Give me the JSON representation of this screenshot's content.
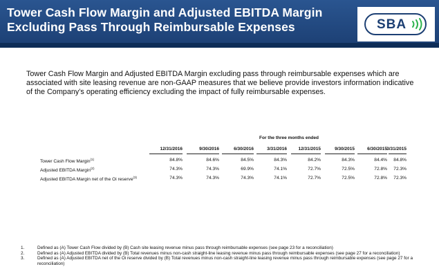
{
  "header": {
    "title_line1": "Tower Cash Flow Margin and Adjusted EBITDA Margin",
    "title_line2": "Excluding Pass Through Reimbursable Expenses",
    "logo_text": "SBA",
    "logo_icon": "signal-waves-icon",
    "colors": {
      "header_bg": "#1c3f73",
      "logo_green": "#2bb24c"
    }
  },
  "intro": "Tower Cash Flow Margin and Adjusted EBITDA Margin excluding pass through reimbursable expenses which are associated with site leasing revenue are non-GAAP measures that we believe provide investors information indicative of the Company’s operating efficiency excluding the impact of fully reimbursable expenses.",
  "table": {
    "caption": "For the three months ended",
    "columns": [
      "12/31/2016",
      "9/30/2016",
      "6/30/2016",
      "3/31/2016",
      "12/31/2015",
      "9/30/2015",
      "6/30/2015",
      "3/31/2015"
    ],
    "rows": [
      {
        "label": "Tower Cash Flow Margin",
        "footnote": "(1)",
        "values": [
          "84.8%",
          "84.6%",
          "84.5%",
          "84.3%",
          "84.2%",
          "84.3%",
          "84.4%",
          "84.8%"
        ]
      },
      {
        "label": "Adjusted EBITDA Margin",
        "footnote": "(2)",
        "values": [
          "74.3%",
          "74.3%",
          "69.9%",
          "74.1%",
          "72.7%",
          "72.5%",
          "72.8%",
          "72.3%"
        ]
      },
      {
        "label": "Adjusted EBITDA Margin net of the Oi reserve",
        "footnote": "(3)",
        "values": [
          "74.3%",
          "74.3%",
          "74.3%",
          "74.1%",
          "72.7%",
          "72.5%",
          "72.8%",
          "72.3%"
        ]
      }
    ]
  },
  "footnotes": [
    {
      "num": "1.",
      "text": "Defined as (A) Tower Cash Flow divided by (B) Cash site leasing revenue minus pass through reimbursable expenses (see page 23 for a reconciliation)"
    },
    {
      "num": "2.",
      "text": "Defined as (A) Adjusted EBITDA divided by (B) Total revenues minus non-cash straight-line leasing revenue minus pass through reimbursable expenses (see page 27 for a reconciliation)"
    },
    {
      "num": "3.",
      "text": "Defined as (A) Adjusted EBITDA net of the Oi reserve divided by (B) Total revenues minus non-cash straight-line leasing revenue minus pass through reimbursable expenses (see page 27 for a reconciliation)"
    }
  ]
}
